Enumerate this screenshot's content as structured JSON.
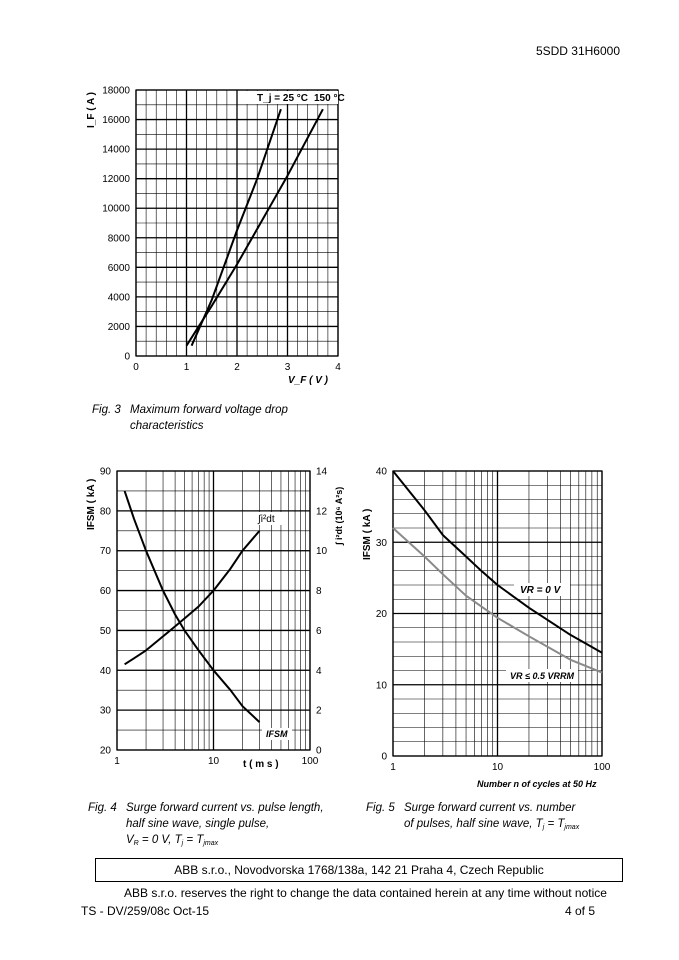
{
  "header": {
    "doc_id": "5SDD 31H6000"
  },
  "figures": [
    {
      "label": "Fig. 3",
      "lines": [
        "Maximum forward voltage drop",
        "characteristics"
      ]
    },
    {
      "label": "Fig. 4",
      "lines": [
        "Surge forward current vs. pulse length,",
        "half sine wave, single pulse,"
      ],
      "line3": {
        "v": "V",
        "vsub": "R",
        "mid": " = 0 V, T",
        "tsub": "j",
        "eq": " = T",
        "tmaxsub": "jmax"
      }
    },
    {
      "label": "Fig. 5",
      "lines": [
        "Surge forward current  vs. number"
      ],
      "line2": {
        "pre": "of pulses, half sine wave, T",
        "tsub": "j",
        "eq": " = T",
        "tmaxsub": "jmax"
      }
    }
  ],
  "footer": {
    "address": "ABB s.r.o., Novodvorska 1768/138a, 142 21 Praha 4, Czech Republic",
    "disclaimer": "ABB s.r.o. reserves the right to change the data contained herein at any time without notice",
    "doc_ref": "TS - DV/259/08c   Oct-15",
    "page": "4 of 5"
  },
  "chart_data": [
    {
      "type": "line",
      "title": "Maximum forward voltage drop characteristics",
      "xlabel": "V_F ( V )",
      "ylabel": "I_F ( A )",
      "xscale": "linear",
      "xlim": [
        0,
        4
      ],
      "ylim": [
        0,
        18000
      ],
      "xticks": [
        0,
        1,
        2,
        3,
        4
      ],
      "yticks": [
        0,
        2000,
        4000,
        6000,
        8000,
        10000,
        12000,
        14000,
        16000,
        18000
      ],
      "grid": true,
      "legend_label": "T_j = 25 °C",
      "series": [
        {
          "name": "25 °C",
          "x": [
            1.1,
            1.5,
            2.0,
            2.4,
            2.87
          ],
          "y": [
            700,
            3800,
            8500,
            12000,
            16700
          ]
        },
        {
          "name": "150 °C",
          "x": [
            1.0,
            1.5,
            2.0,
            2.5,
            3.0,
            3.7
          ],
          "y": [
            700,
            3400,
            6200,
            9200,
            12200,
            16700
          ]
        }
      ]
    },
    {
      "type": "line",
      "title": "Surge forward current vs. pulse length",
      "xlabel": "t ( m s )",
      "ylabel": "I_FSM ( kA )",
      "y2label": "∫ i²dt (10⁶ A²s)",
      "xscale": "log",
      "xlim": [
        1,
        100
      ],
      "ylim": [
        20,
        90
      ],
      "y2lim": [
        0,
        14
      ],
      "xticks": [
        1,
        10,
        100
      ],
      "yticks": [
        20,
        30,
        40,
        50,
        60,
        70,
        80,
        90
      ],
      "y2ticks": [
        0,
        2,
        4,
        6,
        8,
        10,
        12,
        14
      ],
      "grid": true,
      "series": [
        {
          "name": "I_FSM",
          "axis": "left",
          "x": [
            1.2,
            1.5,
            2,
            3,
            4,
            5,
            7,
            10,
            15,
            20,
            30
          ],
          "y": [
            85,
            78,
            70,
            60,
            54,
            50,
            45,
            40,
            35,
            31,
            27
          ]
        },
        {
          "name": "∫i²dt",
          "axis": "right",
          "x": [
            1.2,
            1.5,
            2,
            3,
            4,
            5,
            7,
            10,
            15,
            20,
            30
          ],
          "y": [
            4.3,
            4.6,
            5.0,
            5.7,
            6.2,
            6.6,
            7.2,
            8.0,
            9.1,
            10.0,
            11.0
          ]
        }
      ]
    },
    {
      "type": "line",
      "title": "Surge forward current vs. number of pulses",
      "xlabel": "Number n of cycles at 50 Hz",
      "ylabel": "I_FSM ( kA )",
      "xscale": "log",
      "xlim": [
        1,
        100
      ],
      "ylim": [
        0,
        40
      ],
      "xticks": [
        1,
        10,
        100
      ],
      "yticks": [
        0,
        10,
        20,
        30,
        40
      ],
      "grid": true,
      "series": [
        {
          "name": "V_R = 0 V",
          "x": [
            1,
            2,
            3,
            5,
            7,
            10,
            20,
            50,
            100
          ],
          "y": [
            40,
            34.5,
            31,
            28,
            26,
            24,
            20.8,
            17,
            14.5
          ]
        },
        {
          "name": "V_R ≤ 0.5 V_RRM",
          "x": [
            1,
            2,
            3,
            5,
            7,
            10,
            20,
            50,
            100
          ],
          "y": [
            32,
            28,
            25.5,
            22.5,
            21,
            19.4,
            16.8,
            13.5,
            11.7
          ]
        }
      ]
    }
  ],
  "colors": {
    "series_black": "#000000",
    "series_gray": "#808080"
  }
}
